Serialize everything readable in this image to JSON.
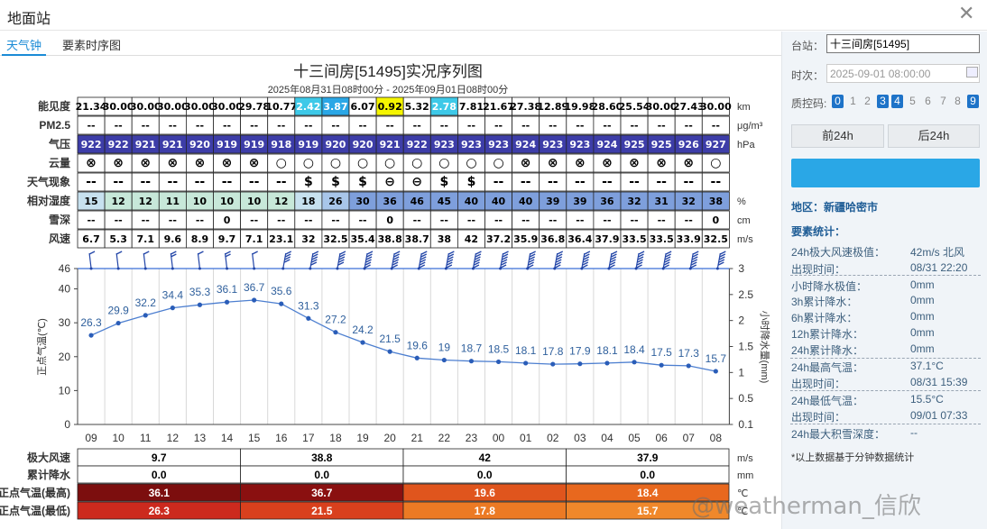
{
  "window": {
    "title": "地面站",
    "close_icon": "close-icon"
  },
  "tabs": [
    "天气钟",
    "要素时序图"
  ],
  "chart_title": "十三间房[51495]实况序列图",
  "chart_subtitle": "2025年08月31日08时00分 - 2025年09月01日08时00分",
  "hours": [
    "09",
    "10",
    "11",
    "12",
    "13",
    "14",
    "15",
    "16",
    "17",
    "18",
    "19",
    "20",
    "21",
    "22",
    "23",
    "00",
    "01",
    "02",
    "03",
    "04",
    "05",
    "06",
    "07",
    "08"
  ],
  "rows": {
    "visibility": {
      "label": "能见度",
      "unit": "km",
      "values": [
        "21.34",
        "30.00",
        "30.00",
        "30.00",
        "30.00",
        "30.00",
        "29.78",
        "10.77",
        "2.42",
        "3.87",
        "6.07",
        "0.92",
        "5.32",
        "2.78",
        "7.81",
        "21.67",
        "27.38",
        "12.89",
        "19.98",
        "28.60",
        "25.54",
        "30.00",
        "27.43",
        "30.00"
      ]
    },
    "pm25": {
      "label": "PM2.5",
      "unit": "μg/m³",
      "values": [
        "--",
        "--",
        "--",
        "--",
        "--",
        "--",
        "--",
        "--",
        "--",
        "--",
        "--",
        "--",
        "--",
        "--",
        "--",
        "--",
        "--",
        "--",
        "--",
        "--",
        "--",
        "--",
        "--",
        "--"
      ]
    },
    "pressure": {
      "label": "气压",
      "unit": "hPa",
      "values": [
        "922",
        "922",
        "921",
        "921",
        "920",
        "919",
        "919",
        "918",
        "919",
        "920",
        "920",
        "921",
        "922",
        "923",
        "923",
        "923",
        "924",
        "923",
        "923",
        "924",
        "925",
        "925",
        "926",
        "927"
      ]
    },
    "cloud": {
      "label": "云量",
      "values": [
        "⊗",
        "⊗",
        "⊗",
        "⊗",
        "⊗",
        "⊗",
        "⊗",
        "○",
        "○",
        "○",
        "○",
        "○",
        "○",
        "○",
        "○",
        "○",
        "⊗",
        "⊗",
        "⊗",
        "⊗",
        "⊗",
        "⊗",
        "⊗",
        "○"
      ]
    },
    "weather": {
      "label": "天气现象",
      "values": [
        "--",
        "--",
        "--",
        "--",
        "--",
        "--",
        "--",
        "--",
        "$",
        "$",
        "$",
        "⊖",
        "⊖",
        "$",
        "$",
        "--",
        "--",
        "--",
        "--",
        "--",
        "--",
        "--",
        "--",
        "--"
      ]
    },
    "humidity": {
      "label": "相对湿度",
      "unit": "%",
      "values": [
        "15",
        "12",
        "12",
        "11",
        "10",
        "10",
        "10",
        "12",
        "18",
        "26",
        "30",
        "36",
        "46",
        "45",
        "40",
        "40",
        "40",
        "39",
        "39",
        "36",
        "32",
        "31",
        "32",
        "38"
      ]
    },
    "snow": {
      "label": "雪深",
      "unit": "cm",
      "values": [
        "--",
        "--",
        "--",
        "--",
        "--",
        "0",
        "--",
        "--",
        "--",
        "--",
        "--",
        "0",
        "--",
        "--",
        "--",
        "--",
        "--",
        "--",
        "--",
        "--",
        "--",
        "--",
        "--",
        "0"
      ]
    },
    "wind": {
      "label": "风速",
      "unit": "m/s",
      "values": [
        "6.7",
        "5.3",
        "7.1",
        "9.6",
        "8.9",
        "9.7",
        "7.1",
        "23.1",
        "32",
        "32.5",
        "35.4",
        "38.8",
        "38.7",
        "38",
        "42",
        "37.2",
        "35.9",
        "36.8",
        "36.4",
        "37.9",
        "33.5",
        "33.5",
        "33.9",
        "32.5"
      ]
    }
  },
  "chart_data": {
    "type": "line",
    "x": [
      "09",
      "10",
      "11",
      "12",
      "13",
      "14",
      "15",
      "16",
      "17",
      "18",
      "19",
      "20",
      "21",
      "22",
      "23",
      "00",
      "01",
      "02",
      "03",
      "04",
      "05",
      "06",
      "07",
      "08"
    ],
    "series": [
      {
        "values": [
          26.3,
          29.9,
          32.2,
          34.4,
          35.3,
          36.1,
          36.7,
          35.6,
          31.3,
          27.2,
          24.2,
          21.5,
          19.6,
          19,
          18.7,
          18.5,
          18.1,
          17.8,
          17.9,
          18.1,
          18.4,
          17.5,
          17.3,
          15.7
        ]
      }
    ],
    "ylabel": "正点气温(℃)",
    "y2label": "小时降水量(mm)",
    "ylim": [
      0,
      46
    ],
    "yticks": [
      "0",
      "10",
      "20",
      "30",
      "40",
      "46"
    ],
    "y2ticks": [
      "0.1",
      "0.5",
      "1",
      "1.5",
      "2",
      "2.5",
      "3"
    ]
  },
  "summary": {
    "rows": [
      {
        "label": "极大风速",
        "unit": "m/s",
        "values": [
          "9.7",
          "38.8",
          "42",
          "37.9"
        ]
      },
      {
        "label": "累计降水",
        "unit": "mm",
        "values": [
          "0.0",
          "0.0",
          "0.0",
          "0.0"
        ]
      },
      {
        "label": "正点气温(最高)",
        "unit": "℃",
        "values": [
          "36.1",
          "36.7",
          "19.6",
          "18.4"
        ]
      },
      {
        "label": "正点气温(最低)",
        "unit": "℃",
        "values": [
          "26.3",
          "21.5",
          "17.8",
          "15.7"
        ]
      }
    ]
  },
  "panel": {
    "station_label": "台站：",
    "station_value": "十三间房[51495]",
    "time_label": "时次：",
    "time_value": "2025-09-01 08:00:00",
    "qc_label": "质控码:",
    "qc_codes": [
      "0",
      "1",
      "2",
      "3",
      "4",
      "5",
      "6",
      "7",
      "8",
      "9"
    ],
    "qc_active": [
      "0",
      "3",
      "4",
      "9"
    ],
    "prev_btn": "前24h",
    "next_btn": "后24h",
    "big_btn": "",
    "region": "地区：新疆哈密市",
    "stats_title": "要素统计：",
    "stats": [
      {
        "label": "24h极大风速极值：",
        "value": "42m/s 北风"
      },
      {
        "label": "出现时间：",
        "value": "08/31 22:20"
      },
      {
        "label": "小时降水极值：",
        "value": "0mm"
      },
      {
        "label": "3h累计降水：",
        "value": "0mm"
      },
      {
        "label": "6h累计降水：",
        "value": "0mm"
      },
      {
        "label": "12h累计降水：",
        "value": "0mm"
      },
      {
        "label": "24h累计降水：",
        "value": "0mm"
      },
      {
        "label": "24h最高气温：",
        "value": "37.1°C"
      },
      {
        "label": "出现时间：",
        "value": "08/31 15:39"
      },
      {
        "label": "24h最低气温：",
        "value": "15.5°C"
      },
      {
        "label": "出现时间：",
        "value": "09/01 07:33"
      },
      {
        "label": "24h最大积雪深度：",
        "value": "--"
      }
    ],
    "note": "*以上数据基于分钟数据统计"
  },
  "watermark": "@weatherman_信欣"
}
